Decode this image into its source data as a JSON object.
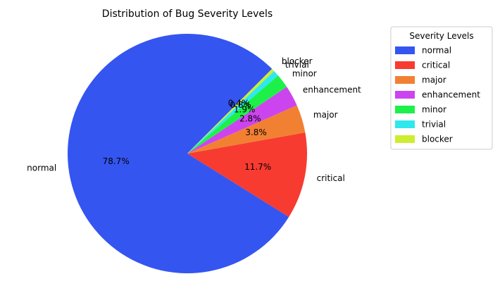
{
  "chart_data": {
    "type": "pie",
    "title": "Distribution of Bug Severity Levels",
    "legend": {
      "title": "Severity Levels",
      "placement": "right"
    },
    "start_angle_deg": 45,
    "direction": "counterclockwise",
    "slices": [
      {
        "label": "normal",
        "percent_label": "78.7%",
        "value": 78.7,
        "color": "#3555f0"
      },
      {
        "label": "critical",
        "percent_label": "11.7%",
        "value": 11.7,
        "color": "#f73b30"
      },
      {
        "label": "major",
        "percent_label": "3.8%",
        "value": 3.8,
        "color": "#f28033"
      },
      {
        "label": "enhancement",
        "percent_label": "2.8%",
        "value": 2.8,
        "color": "#cc44ee"
      },
      {
        "label": "minor",
        "percent_label": "1.9%",
        "value": 1.9,
        "color": "#1ef04a"
      },
      {
        "label": "trivial",
        "percent_label": "0.8%",
        "value": 0.8,
        "color": "#2ee8ee"
      },
      {
        "label": "blocker",
        "percent_label": "0.4%",
        "value": 0.4,
        "color": "#cdee30"
      }
    ]
  }
}
